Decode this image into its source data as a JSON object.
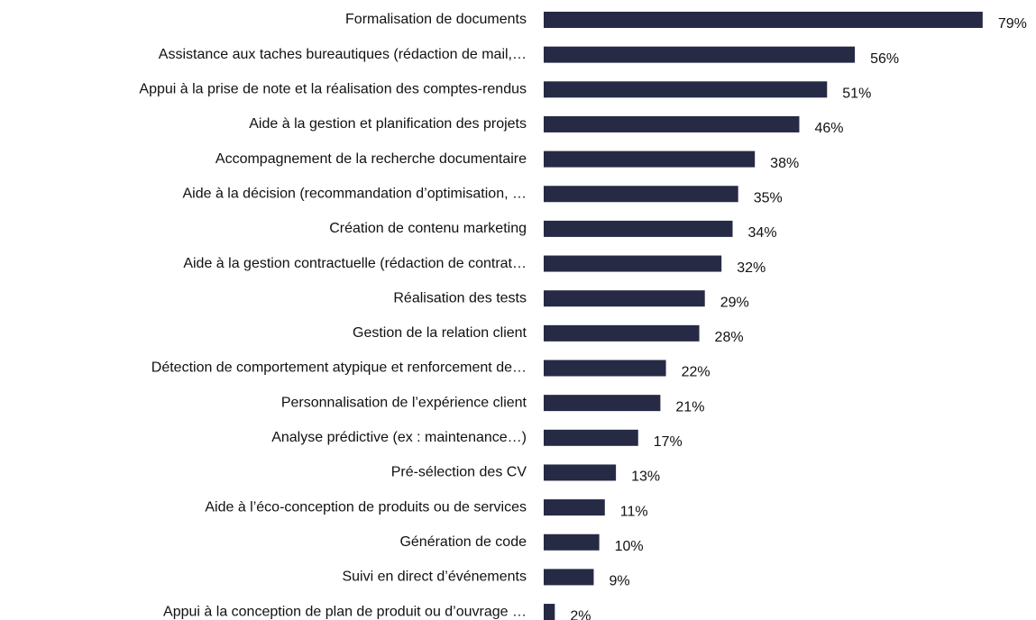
{
  "chart_data": {
    "type": "bar",
    "orientation": "horizontal",
    "categories": [
      "Formalisation de documents",
      "Assistance aux taches bureautiques (rédaction de mail,…",
      "Appui à la prise de note et la réalisation des comptes-rendus",
      "Aide à la gestion et planification des projets",
      "Accompagnement de la recherche documentaire",
      "Aide à la décision (recommandation d’optimisation, …",
      "Création de contenu marketing",
      "Aide à la gestion contractuelle (rédaction de contrat…",
      "Réalisation des tests",
      "Gestion de la relation client",
      "Détection de comportement atypique et renforcement de…",
      "Personnalisation de l’expérience client",
      "Analyse prédictive (ex : maintenance…)",
      "Pré-sélection des CV",
      "Aide à l’éco-conception de produits ou de services",
      "Génération de code",
      "Suivi en direct d’événements",
      "Appui à la conception de plan de produit ou d’ouvrage …"
    ],
    "values": [
      79,
      56,
      51,
      46,
      38,
      35,
      34,
      32,
      29,
      28,
      22,
      21,
      17,
      13,
      11,
      10,
      9,
      2
    ],
    "value_labels": [
      "79%",
      "56%",
      "51%",
      "46%",
      "38%",
      "35%",
      "34%",
      "32%",
      "29%",
      "28%",
      "22%",
      "21%",
      "17%",
      "13%",
      "11%",
      "10%",
      "9%",
      "2%"
    ],
    "color": "#262a45",
    "xlim": [
      0,
      80
    ]
  }
}
